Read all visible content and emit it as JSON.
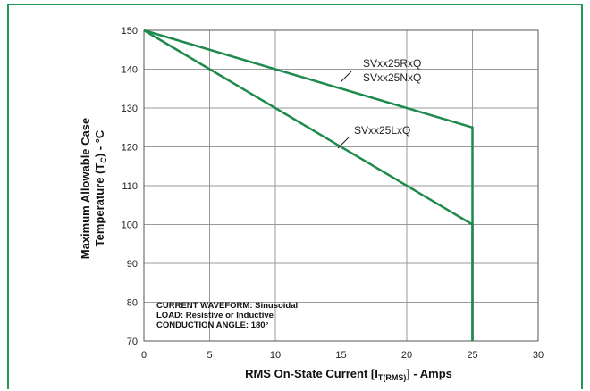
{
  "chart_data": {
    "type": "line",
    "title": "",
    "xlabel": "RMS On-State Current [I",
    "xlabel_sub": "T(RMS)",
    "xlabel_suffix": "] - Amps",
    "ylabel_line1": "Maximum Allowable Case",
    "ylabel_line2_prefix": "Temperature (T",
    "ylabel_line2_sub": "C",
    "ylabel_line2_suffix": ") - °C",
    "xlim": [
      0,
      30
    ],
    "ylim": [
      70,
      150
    ],
    "x_ticks": [
      "0",
      "5",
      "10",
      "15",
      "20",
      "25",
      "30"
    ],
    "y_ticks": [
      "70",
      "80",
      "90",
      "100",
      "110",
      "120",
      "130",
      "140",
      "150"
    ],
    "grid": true,
    "line_color": "#1e8a4c",
    "series": [
      {
        "name": "SVxx25RxQ",
        "name2": "SVxx25NxQ",
        "x": [
          0,
          25,
          25
        ],
        "y": [
          150,
          125,
          70
        ]
      },
      {
        "name": "SVxx25LxQ",
        "x": [
          0,
          25,
          25
        ],
        "y": [
          150,
          100,
          70
        ]
      }
    ],
    "notes": [
      "CURRENT WAVEFORM: Sinusoidal",
      "LOAD: Resistive or Inductive",
      "CONDUCTION ANGLE: 180°"
    ]
  }
}
